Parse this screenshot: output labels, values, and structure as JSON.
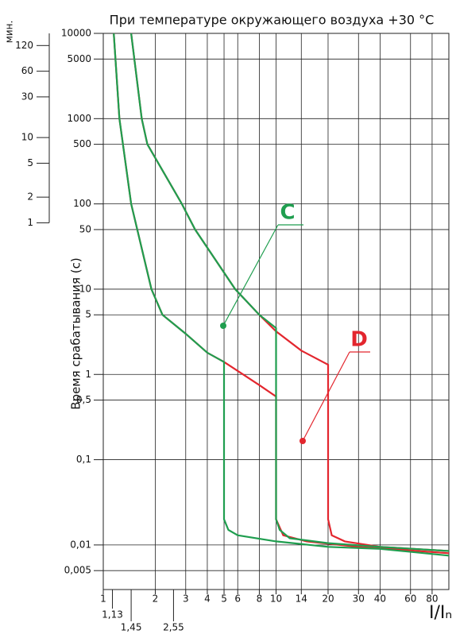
{
  "chart_data": {
    "type": "line",
    "title": "При температуре окружающего воздуха +30 °C",
    "y_label": "Время срабатывания (с)",
    "x_label": "I/Iₙ",
    "y2_label": "мин.",
    "log_x": true,
    "log_y": true,
    "grid": true,
    "xlim": [
      1,
      100
    ],
    "ylim": [
      0.003,
      10000
    ],
    "y2lim": [
      5e-05,
      166.667
    ],
    "xticks": [
      1,
      2,
      3,
      4,
      5,
      6,
      8,
      10,
      14,
      20,
      30,
      40,
      60,
      80
    ],
    "xticks_extra": [
      {
        "value": 1.13,
        "label": "1,13"
      },
      {
        "value": 1.45,
        "label": "1,45"
      },
      {
        "value": 2.55,
        "label": "2,55"
      }
    ],
    "yticks": [
      10000,
      5000,
      1000,
      500,
      100,
      50,
      10,
      5,
      1,
      {
        "value": 0.5,
        "label": "0,5"
      },
      {
        "value": 0.1,
        "label": "0,1"
      },
      {
        "value": 0.01,
        "label": "0,01"
      },
      {
        "value": 0.005,
        "label": "0,005"
      }
    ],
    "y2ticks": [
      120,
      60,
      30,
      10,
      5,
      2,
      1
    ],
    "series": [
      {
        "name": "D",
        "color": "#e3262e",
        "x": [
          1.15,
          1.24,
          1.45,
          1.9,
          2.2,
          3,
          4,
          5,
          6,
          8,
          10,
          10,
          11,
          15,
          30,
          100,
          null,
          1.45,
          1.67,
          1.8,
          2.85,
          3.4,
          5.8,
          8,
          10,
          14,
          20,
          20,
          21,
          25,
          40,
          100
        ],
        "values": [
          10000,
          1000,
          100,
          10,
          5,
          3,
          1.8,
          1.4,
          1.1,
          0.75,
          0.55,
          0.02,
          0.013,
          0.011,
          0.0095,
          0.008,
          null,
          10000,
          1000,
          500,
          100,
          50,
          10,
          5,
          3.2,
          1.9,
          1.3,
          0.02,
          0.013,
          0.011,
          0.0095,
          0.0085
        ]
      },
      {
        "name": "C",
        "color": "#1f9e4f",
        "x": [
          1.15,
          1.24,
          1.45,
          1.9,
          2.2,
          3,
          4,
          5,
          5,
          5.3,
          6,
          10,
          20,
          40,
          100,
          null,
          1.45,
          1.67,
          1.8,
          2.85,
          3.4,
          5.8,
          8,
          10,
          10,
          10.5,
          12,
          20,
          40,
          100
        ],
        "values": [
          10000,
          1000,
          100,
          10,
          5,
          3,
          1.8,
          1.4,
          0.02,
          0.015,
          0.013,
          0.011,
          0.0095,
          0.009,
          0.0075,
          null,
          10000,
          1000,
          500,
          100,
          50,
          10,
          5,
          3.5,
          0.02,
          0.015,
          0.012,
          0.0105,
          0.0095,
          0.0085
        ]
      }
    ]
  }
}
